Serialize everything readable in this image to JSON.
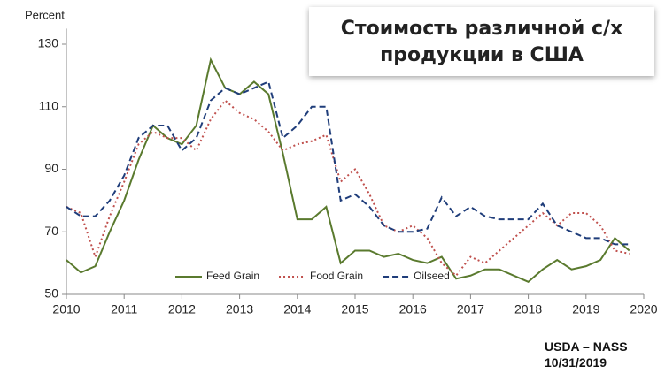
{
  "chart_data": {
    "type": "line",
    "title": "Стоимость различной с/х продукции в США",
    "y_label": "Percent",
    "source": "USDA – NASS",
    "date": "10/31/2019",
    "x": [
      2010,
      2010.25,
      2010.5,
      2010.75,
      2011,
      2011.25,
      2011.5,
      2011.75,
      2012,
      2012.25,
      2012.5,
      2012.75,
      2013,
      2013.25,
      2013.5,
      2013.75,
      2014,
      2014.25,
      2014.5,
      2014.75,
      2015,
      2015.25,
      2015.5,
      2015.75,
      2016,
      2016.25,
      2016.5,
      2016.75,
      2017,
      2017.25,
      2017.5,
      2017.75,
      2018,
      2018.25,
      2018.5,
      2018.75,
      2019,
      2019.25,
      2019.5,
      2019.75
    ],
    "series": [
      {
        "name": "Feed Grain",
        "color": "#5a7a2e",
        "dash": "solid",
        "values": [
          61,
          57,
          59,
          70,
          80,
          93,
          104,
          100,
          98,
          104,
          125,
          116,
          114,
          118,
          114,
          95,
          74,
          74,
          78,
          60,
          64,
          64,
          62,
          63,
          61,
          60,
          62,
          55,
          56,
          58,
          58,
          56,
          54,
          58,
          61,
          58,
          59,
          61,
          68,
          64
        ]
      },
      {
        "name": "Food Grain",
        "color": "#c0504d",
        "dash": "dotted",
        "values": [
          78,
          76,
          62,
          75,
          86,
          98,
          102,
          100,
          100,
          96,
          106,
          112,
          108,
          106,
          102,
          96,
          98,
          99,
          101,
          86,
          90,
          82,
          72,
          70,
          72,
          68,
          60,
          56,
          62,
          60,
          64,
          68,
          72,
          76,
          72,
          76,
          76,
          72,
          64,
          63
        ]
      },
      {
        "name": "Oilseed",
        "color": "#1f3d7a",
        "dash": "dashed",
        "values": [
          78,
          75,
          75,
          80,
          88,
          100,
          104,
          104,
          96,
          100,
          112,
          116,
          114,
          116,
          118,
          100,
          104,
          110,
          110,
          80,
          82,
          78,
          72,
          70,
          70,
          71,
          81,
          75,
          78,
          75,
          74,
          74,
          74,
          79,
          72,
          70,
          68,
          68,
          66,
          66
        ]
      }
    ],
    "xlim": [
      2010,
      2020
    ],
    "xticks": [
      2010,
      2011,
      2012,
      2013,
      2014,
      2015,
      2016,
      2017,
      2018,
      2019,
      2020
    ],
    "ylim": [
      50,
      135
    ],
    "yticks": [
      50,
      70,
      90,
      110,
      130
    ],
    "grid": false,
    "legend": "bottom"
  }
}
